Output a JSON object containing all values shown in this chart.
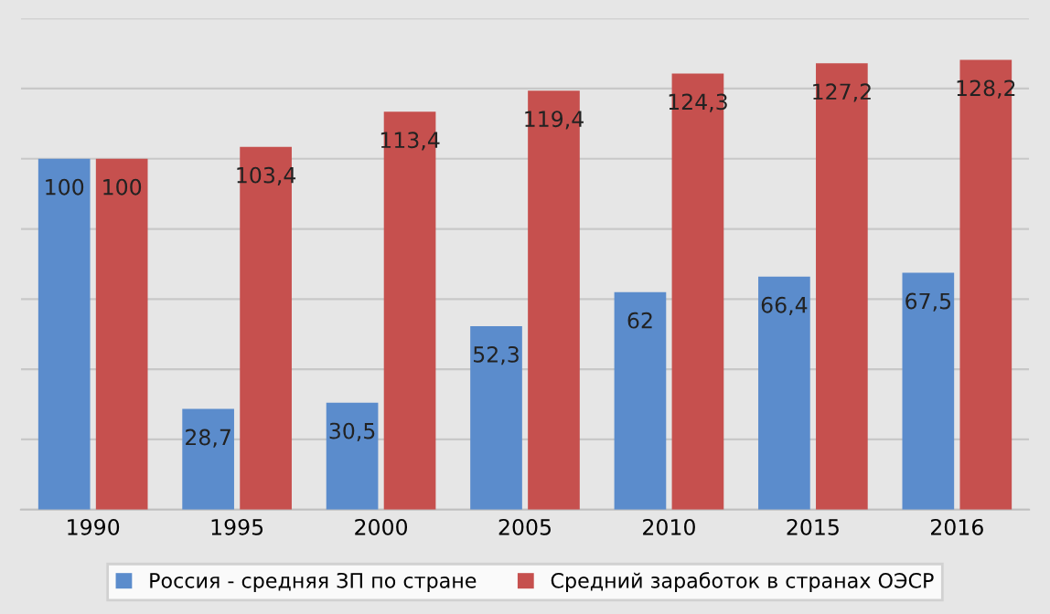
{
  "chart_data": {
    "type": "bar",
    "categories": [
      "1990",
      "1995",
      "2000",
      "2005",
      "2010",
      "2015",
      "2016"
    ],
    "series": [
      {
        "name": "Россия - средняя ЗП по стране",
        "color": "#5b8ccc",
        "values": [
          100,
          28.7,
          30.5,
          52.3,
          62,
          66.4,
          67.5
        ],
        "value_labels": [
          "100",
          "28,7",
          "30,5",
          "52,3",
          "62",
          "66,4",
          "67,5"
        ]
      },
      {
        "name": "Средний заработок в странах ОЭСР",
        "color": "#c6504e",
        "values": [
          100,
          103.4,
          113.4,
          119.4,
          124.3,
          127.2,
          128.2
        ],
        "value_labels": [
          "100",
          "103,4",
          "113,4",
          "119,4",
          "124,3",
          "127,2",
          "128,2"
        ]
      }
    ],
    "ylim": [
      0,
      140
    ],
    "yticks": [
      {
        "value": 0,
        "label": null
      },
      {
        "value": 20,
        "label": null
      },
      {
        "value": 40,
        "label": null
      },
      {
        "value": 60,
        "label": null
      },
      {
        "value": 80,
        "label": null
      },
      {
        "value": 100,
        "label": null
      },
      {
        "value": 120,
        "label": null
      },
      {
        "value": 140,
        "label": null
      }
    ],
    "tick_labels": "x",
    "grid": "y",
    "legend": "bottom"
  }
}
